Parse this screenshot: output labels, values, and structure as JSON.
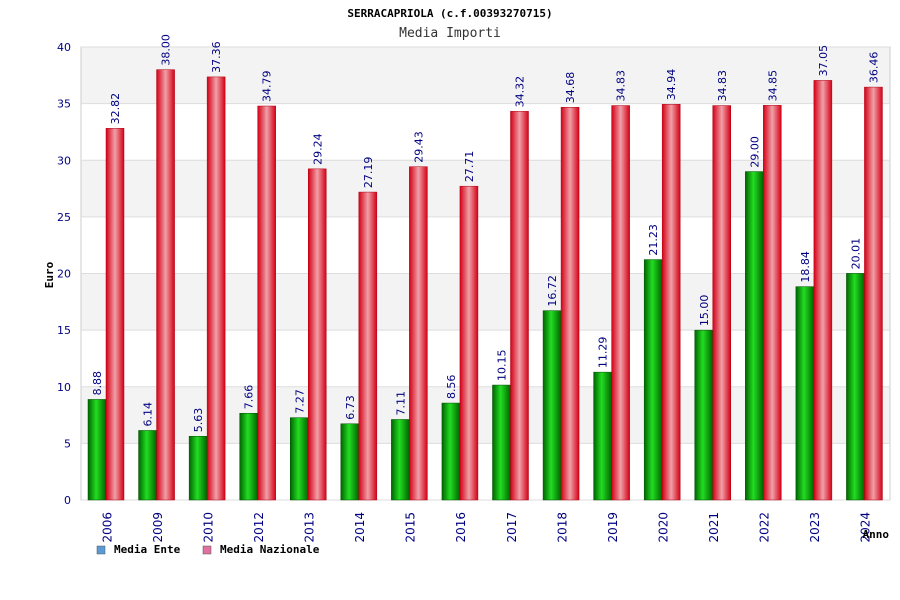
{
  "chart_data": {
    "type": "bar",
    "title": "SERRACAPRIOLA (c.f.00393270715)",
    "subtitle": "Media Importi",
    "xlabel": "Anno",
    "ylabel": "Euro",
    "ylim": [
      0,
      40
    ],
    "yticks": [
      0,
      5,
      10,
      15,
      20,
      25,
      30,
      35,
      40
    ],
    "grid": true,
    "legend_position": "bottom-left",
    "categories": [
      "2006",
      "2009",
      "2010",
      "2012",
      "2013",
      "2014",
      "2015",
      "2016",
      "2017",
      "2018",
      "2019",
      "2020",
      "2021",
      "2022",
      "2023",
      "2024"
    ],
    "series": [
      {
        "name": "Media Ente",
        "color": "#00a000",
        "legend_color": "#5b9bd5",
        "values": [
          8.88,
          6.14,
          5.63,
          7.66,
          7.27,
          6.73,
          7.11,
          8.56,
          10.15,
          16.72,
          11.29,
          21.23,
          15.0,
          29.0,
          18.84,
          20.01
        ],
        "labels": [
          "8.88",
          "6.14",
          "5.63",
          "7.66",
          "7.27",
          "6.73",
          "7.11",
          "8.56",
          "10.15",
          "16.72",
          "11.29",
          "21.23",
          "15.00",
          "29.00",
          "18.84",
          "20.01"
        ]
      },
      {
        "name": "Media Nazionale",
        "color": "#e0001a",
        "legend_color": "#e070a0",
        "values": [
          32.82,
          38.0,
          37.36,
          34.79,
          29.24,
          27.19,
          29.43,
          27.71,
          34.32,
          34.68,
          34.83,
          34.94,
          34.83,
          34.85,
          37.05,
          36.46
        ],
        "labels": [
          "32.82",
          "38.00",
          "37.36",
          "34.79",
          "29.24",
          "27.19",
          "29.43",
          "27.71",
          "34.32",
          "34.68",
          "34.83",
          "34.94",
          "34.83",
          "34.85",
          "37.05",
          "36.46"
        ]
      }
    ]
  }
}
